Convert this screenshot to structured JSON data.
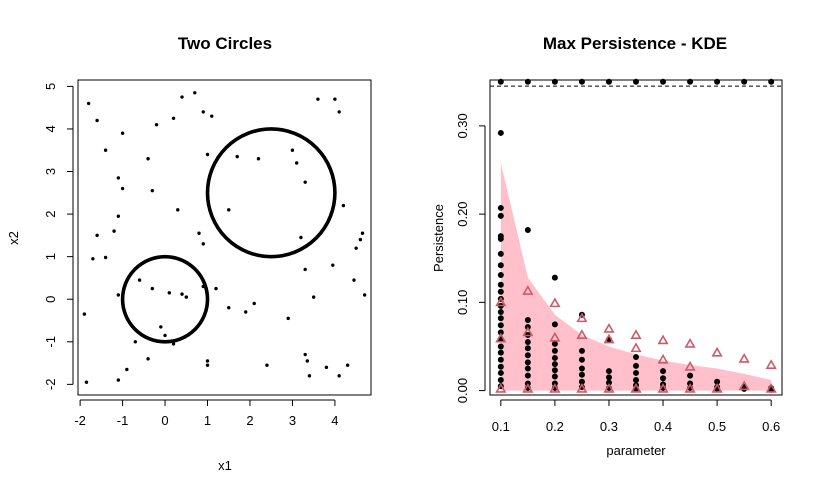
{
  "colors": {
    "points": "#000000",
    "band": "#ffc0cb",
    "triangle": "#cd5a6a",
    "frame": "#000000"
  },
  "chart_data": [
    {
      "type": "scatter",
      "title": "Two Circles",
      "xlabel": "x1",
      "ylabel": "x2",
      "xlim": [
        -2.05,
        4.85
      ],
      "ylim": [
        -2.25,
        5.15
      ],
      "xticks": [
        -2,
        -1,
        0,
        1,
        2,
        3,
        4
      ],
      "yticks": [
        -2,
        -1,
        0,
        1,
        2,
        3,
        4,
        5
      ],
      "grid": false,
      "circles": [
        {
          "cx": 0.0,
          "cy": 0.0,
          "r": 1.0
        },
        {
          "cx": 2.5,
          "cy": 2.5,
          "r": 1.5
        }
      ],
      "points": [
        [
          -1.8,
          4.6
        ],
        [
          -1.6,
          4.2
        ],
        [
          -1.4,
          3.5
        ],
        [
          -1.0,
          3.9
        ],
        [
          -1.1,
          2.85
        ],
        [
          -1.0,
          2.6
        ],
        [
          -0.2,
          4.1
        ],
        [
          0.2,
          4.25
        ],
        [
          0.4,
          4.75
        ],
        [
          0.7,
          4.85
        ],
        [
          0.9,
          4.4
        ],
        [
          1.1,
          4.3
        ],
        [
          -0.4,
          3.3
        ],
        [
          -0.3,
          2.55
        ],
        [
          1.0,
          3.4
        ],
        [
          1.7,
          3.35
        ],
        [
          2.2,
          3.3
        ],
        [
          3.0,
          3.5
        ],
        [
          3.1,
          3.2
        ],
        [
          3.3,
          2.75
        ],
        [
          3.6,
          4.7
        ],
        [
          4.0,
          4.7
        ],
        [
          4.1,
          4.4
        ],
        [
          4.2,
          2.2
        ],
        [
          -1.6,
          1.5
        ],
        [
          -1.7,
          0.95
        ],
        [
          -1.4,
          0.98
        ],
        [
          -1.1,
          1.95
        ],
        [
          -1.2,
          1.6
        ],
        [
          0.3,
          2.1
        ],
        [
          0.8,
          1.55
        ],
        [
          0.9,
          1.3
        ],
        [
          1.5,
          2.1
        ],
        [
          3.2,
          1.45
        ],
        [
          3.3,
          0.7
        ],
        [
          3.95,
          0.8
        ],
        [
          4.5,
          1.2
        ],
        [
          4.6,
          1.4
        ],
        [
          4.65,
          1.55
        ],
        [
          -1.9,
          -0.35
        ],
        [
          -1.1,
          0.1
        ],
        [
          -0.6,
          0.45
        ],
        [
          -0.3,
          0.25
        ],
        [
          0.1,
          0.15
        ],
        [
          0.4,
          0.12
        ],
        [
          0.5,
          0.05
        ],
        [
          0.9,
          0.3
        ],
        [
          1.2,
          0.25
        ],
        [
          1.5,
          -0.2
        ],
        [
          1.9,
          -0.3
        ],
        [
          2.1,
          -0.1
        ],
        [
          -0.7,
          -1.0
        ],
        [
          -0.1,
          -0.65
        ],
        [
          0.0,
          -0.85
        ],
        [
          0.2,
          -1.05
        ],
        [
          1.0,
          -1.55
        ],
        [
          2.4,
          -1.55
        ],
        [
          2.9,
          -0.45
        ],
        [
          3.3,
          -1.3
        ],
        [
          3.35,
          -1.45
        ],
        [
          3.4,
          -1.8
        ],
        [
          3.5,
          0.05
        ],
        [
          3.8,
          -1.6
        ],
        [
          4.1,
          -1.8
        ],
        [
          4.3,
          -1.55
        ],
        [
          4.45,
          0.45
        ],
        [
          4.7,
          0.1
        ],
        [
          -1.85,
          -1.95
        ],
        [
          -1.1,
          -1.9
        ],
        [
          -0.9,
          -1.65
        ],
        [
          -0.4,
          -1.4
        ],
        [
          1.0,
          -1.45
        ]
      ]
    },
    {
      "type": "scatter",
      "title": "Max Persistence - KDE",
      "xlabel": "parameter",
      "ylabel": "Persistence",
      "xlim": [
        0.08,
        0.62
      ],
      "ylim": [
        -0.005,
        0.352
      ],
      "xticks": [
        0.1,
        0.2,
        0.3,
        0.4,
        0.5,
        0.6
      ],
      "yticks": [
        0.0,
        0.1,
        0.2,
        0.3
      ],
      "ytick_labels": [
        "0.00",
        "0.10",
        "0.20",
        "0.30"
      ],
      "grid": false,
      "dashed_line_y": 0.345,
      "band_upper": {
        "x": [
          0.1,
          0.15,
          0.2,
          0.25,
          0.3,
          0.35,
          0.4,
          0.45,
          0.5,
          0.55,
          0.6
        ],
        "y": [
          0.258,
          0.128,
          0.086,
          0.063,
          0.05,
          0.041,
          0.034,
          0.029,
          0.025,
          0.019,
          0.012
        ]
      },
      "top_points": [
        0.1,
        0.15,
        0.2,
        0.25,
        0.3,
        0.35,
        0.4,
        0.45,
        0.5,
        0.55,
        0.6
      ],
      "top_y": 0.35,
      "triangles": [
        [
          0.1,
          0.1
        ],
        [
          0.1,
          0.059
        ],
        [
          0.15,
          0.113
        ],
        [
          0.15,
          0.066
        ],
        [
          0.2,
          0.099
        ],
        [
          0.2,
          0.06
        ],
        [
          0.25,
          0.082
        ],
        [
          0.25,
          0.063
        ],
        [
          0.3,
          0.07
        ],
        [
          0.3,
          0.058
        ],
        [
          0.35,
          0.063
        ],
        [
          0.35,
          0.048
        ],
        [
          0.4,
          0.057
        ],
        [
          0.4,
          0.035
        ],
        [
          0.45,
          0.053
        ],
        [
          0.45,
          0.027
        ],
        [
          0.5,
          0.043
        ],
        [
          0.55,
          0.036
        ],
        [
          0.6,
          0.029
        ],
        [
          0.1,
          0.002
        ],
        [
          0.15,
          0.002
        ],
        [
          0.2,
          0.002
        ],
        [
          0.25,
          0.002
        ],
        [
          0.3,
          0.002
        ],
        [
          0.35,
          0.002
        ],
        [
          0.4,
          0.002
        ],
        [
          0.45,
          0.002
        ],
        [
          0.5,
          0.002
        ],
        [
          0.55,
          0.005
        ],
        [
          0.6,
          0.002
        ]
      ],
      "dots": [
        [
          0.1,
          0.292
        ],
        [
          0.1,
          0.207
        ],
        [
          0.1,
          0.198
        ],
        [
          0.1,
          0.175
        ],
        [
          0.1,
          0.172
        ],
        [
          0.1,
          0.155
        ],
        [
          0.1,
          0.142
        ],
        [
          0.1,
          0.131
        ],
        [
          0.1,
          0.12
        ],
        [
          0.1,
          0.112
        ],
        [
          0.1,
          0.104
        ],
        [
          0.1,
          0.096
        ],
        [
          0.1,
          0.089
        ],
        [
          0.1,
          0.082
        ],
        [
          0.1,
          0.074
        ],
        [
          0.1,
          0.066
        ],
        [
          0.1,
          0.058
        ],
        [
          0.1,
          0.05
        ],
        [
          0.1,
          0.043
        ],
        [
          0.1,
          0.035
        ],
        [
          0.1,
          0.027
        ],
        [
          0.1,
          0.02
        ],
        [
          0.1,
          0.012
        ],
        [
          0.1,
          0.005
        ],
        [
          0.15,
          0.182
        ],
        [
          0.15,
          0.08
        ],
        [
          0.15,
          0.072
        ],
        [
          0.15,
          0.063
        ],
        [
          0.15,
          0.055
        ],
        [
          0.15,
          0.048
        ],
        [
          0.15,
          0.04
        ],
        [
          0.15,
          0.032
        ],
        [
          0.15,
          0.025
        ],
        [
          0.15,
          0.017
        ],
        [
          0.15,
          0.008
        ],
        [
          0.15,
          0.003
        ],
        [
          0.2,
          0.128
        ],
        [
          0.2,
          0.075
        ],
        [
          0.2,
          0.053
        ],
        [
          0.2,
          0.045
        ],
        [
          0.2,
          0.037
        ],
        [
          0.2,
          0.03
        ],
        [
          0.2,
          0.023
        ],
        [
          0.2,
          0.016
        ],
        [
          0.2,
          0.008
        ],
        [
          0.2,
          0.003
        ],
        [
          0.25,
          0.086
        ],
        [
          0.25,
          0.045
        ],
        [
          0.25,
          0.035
        ],
        [
          0.25,
          0.025
        ],
        [
          0.25,
          0.018
        ],
        [
          0.25,
          0.01
        ],
        [
          0.25,
          0.004
        ],
        [
          0.3,
          0.058
        ],
        [
          0.3,
          0.022
        ],
        [
          0.3,
          0.015
        ],
        [
          0.3,
          0.009
        ],
        [
          0.3,
          0.003
        ],
        [
          0.35,
          0.038
        ],
        [
          0.35,
          0.028
        ],
        [
          0.35,
          0.02
        ],
        [
          0.35,
          0.012
        ],
        [
          0.35,
          0.006
        ],
        [
          0.35,
          0.002
        ],
        [
          0.4,
          0.022
        ],
        [
          0.4,
          0.014
        ],
        [
          0.4,
          0.007
        ],
        [
          0.4,
          0.003
        ],
        [
          0.45,
          0.017
        ],
        [
          0.45,
          0.008
        ],
        [
          0.45,
          0.003
        ],
        [
          0.5,
          0.01
        ],
        [
          0.5,
          0.004
        ],
        [
          0.5,
          0.002
        ],
        [
          0.55,
          0.004
        ],
        [
          0.55,
          0.002
        ],
        [
          0.6,
          0.003
        ],
        [
          0.6,
          0.001
        ]
      ]
    }
  ]
}
